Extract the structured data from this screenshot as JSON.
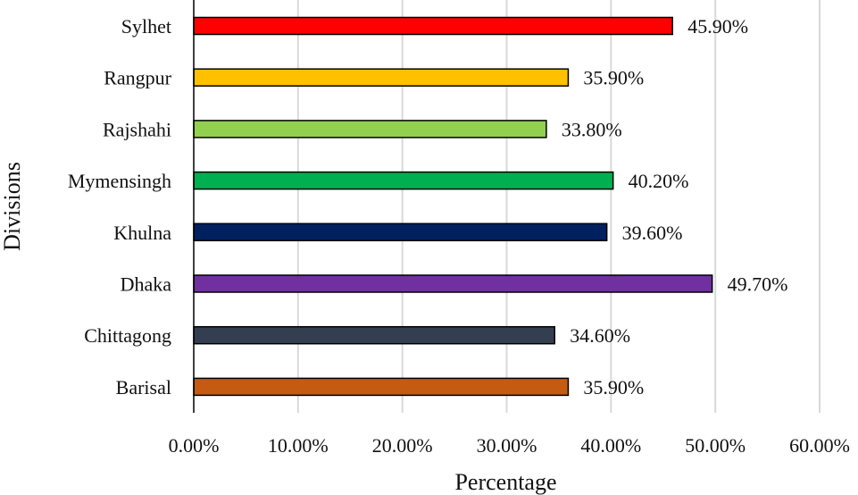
{
  "chart_data": {
    "type": "bar",
    "orientation": "horizontal",
    "categories": [
      "Sylhet",
      "Rangpur",
      "Rajshahi",
      "Mymensingh",
      "Khulna",
      "Dhaka",
      "Chittagong",
      "Barisal"
    ],
    "values": [
      45.9,
      35.9,
      33.8,
      40.2,
      39.6,
      49.7,
      34.6,
      35.9
    ],
    "value_labels": [
      "45.90%",
      "35.90%",
      "33.80%",
      "40.20%",
      "39.60%",
      "49.70%",
      "34.60%",
      "35.90%"
    ],
    "colors": [
      "#ff0000",
      "#ffc000",
      "#92d050",
      "#00b050",
      "#002060",
      "#7030a0",
      "#333f50",
      "#c55a11"
    ],
    "xlabel": "Percentage",
    "ylabel": "Divisions",
    "xlim": [
      0,
      60
    ],
    "x_ticks": [
      0,
      10,
      20,
      30,
      40,
      50,
      60
    ],
    "x_tick_labels": [
      "0.00%",
      "10.00%",
      "20.00%",
      "30.00%",
      "40.00%",
      "50.00%",
      "60.00%"
    ],
    "grid": "vertical",
    "legend": "none"
  }
}
